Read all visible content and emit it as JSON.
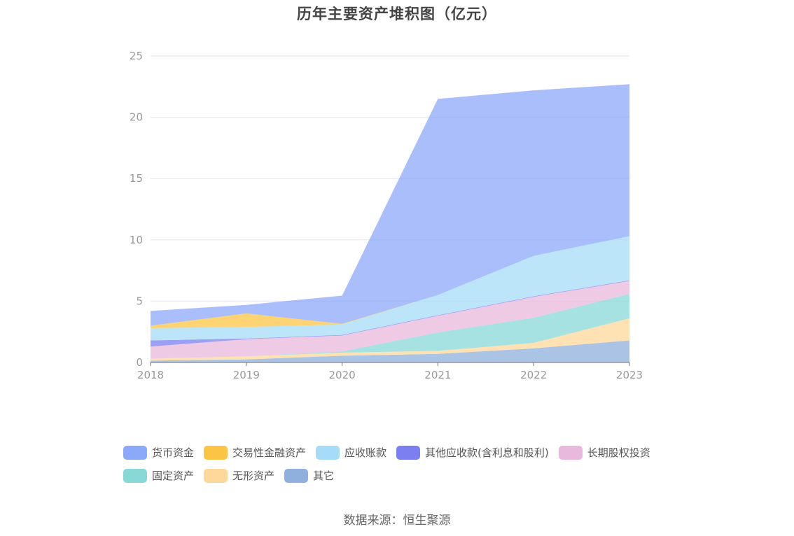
{
  "chart_data": {
    "type": "area",
    "stacked": true,
    "title": "历年主要资产堆积图（亿元）",
    "x": [
      "2018",
      "2019",
      "2020",
      "2021",
      "2022",
      "2023"
    ],
    "ylim": [
      0,
      25
    ],
    "yticks": [
      0,
      5,
      10,
      15,
      20,
      25
    ],
    "grid": true,
    "legend_position": "bottom",
    "series": [
      {
        "name": "其它",
        "color": "#8fb0dd",
        "values": [
          0.15,
          0.25,
          0.55,
          0.7,
          1.15,
          1.8
        ]
      },
      {
        "name": "无形资产",
        "color": "#fdd89a",
        "values": [
          0.15,
          0.25,
          0.25,
          0.25,
          0.45,
          1.8
        ]
      },
      {
        "name": "固定资产",
        "color": "#88d8d8",
        "values": [
          0.0,
          0.0,
          0.1,
          1.5,
          2.05,
          2.0
        ]
      },
      {
        "name": "长期股权投资",
        "color": "#eab8dc",
        "values": [
          1.0,
          1.4,
          1.3,
          1.35,
          1.7,
          1.05
        ]
      },
      {
        "name": "其他应收款(含利息和股利)",
        "color": "#7b7ff0",
        "values": [
          0.5,
          0.05,
          0.05,
          0.05,
          0.05,
          0.05
        ]
      },
      {
        "name": "应收账款",
        "color": "#a7dcf8",
        "values": [
          1.0,
          0.95,
          0.85,
          1.65,
          3.3,
          3.6
        ]
      },
      {
        "name": "交易性金融资产",
        "color": "#fcc444",
        "values": [
          0.2,
          1.1,
          0.05,
          0.0,
          0.0,
          0.0
        ]
      },
      {
        "name": "货币资金",
        "color": "#8ca8f8",
        "values": [
          1.2,
          0.7,
          2.3,
          16.0,
          13.5,
          12.4
        ]
      }
    ]
  },
  "legend": {
    "rows": [
      [
        {
          "label": "货币资金",
          "color": "#8ca8f8"
        },
        {
          "label": "交易性金融资产",
          "color": "#fcc444"
        },
        {
          "label": "应收账款",
          "color": "#a7dcf8"
        },
        {
          "label": "其他应收款(含利息和股利)",
          "color": "#7b7ff0"
        },
        {
          "label": "长期股权投资",
          "color": "#eab8dc"
        }
      ],
      [
        {
          "label": "固定资产",
          "color": "#88d8d8"
        },
        {
          "label": "无形资产",
          "color": "#fdd89a"
        },
        {
          "label": "其它",
          "color": "#8fb0dd"
        }
      ]
    ]
  },
  "source": "数据来源：恒生聚源"
}
